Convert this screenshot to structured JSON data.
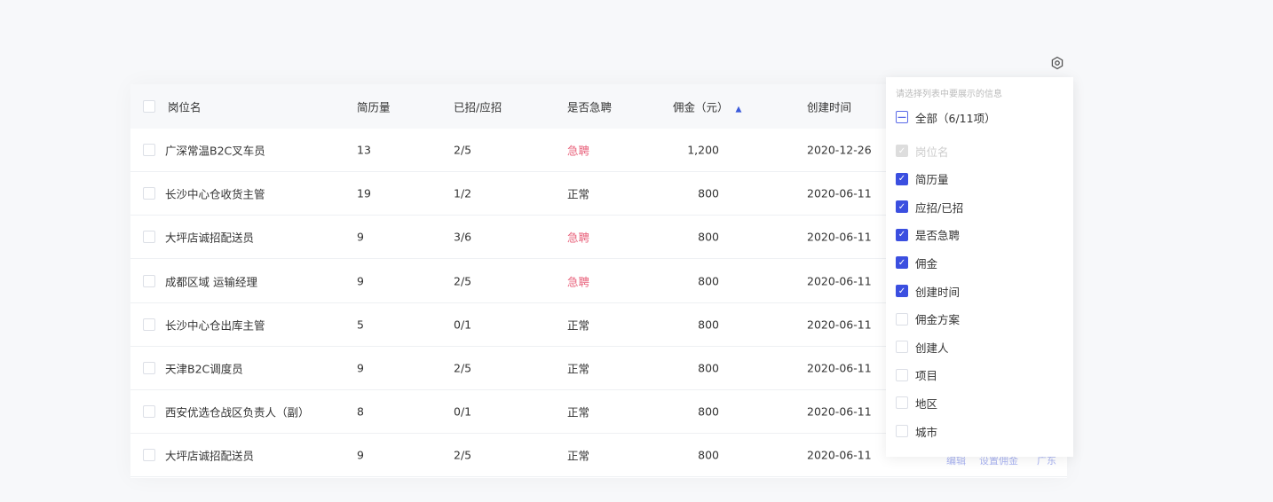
{
  "table": {
    "headers": [
      "岗位名",
      "简历量",
      "已招/应招",
      "是否急聘",
      "佣金（元）",
      "创建时间"
    ],
    "rows": [
      {
        "name": "广深常温B2C叉车员",
        "resumes": "13",
        "hired": "2/5",
        "urgent": "急聘",
        "is_urgent": true,
        "commission": "1,200",
        "created": "2020-12-26"
      },
      {
        "name": "长沙中心仓收货主管",
        "resumes": "19",
        "hired": "1/2",
        "urgent": "正常",
        "is_urgent": false,
        "commission": "800",
        "created": "2020-06-11"
      },
      {
        "name": "大坪店诚招配送员",
        "resumes": "9",
        "hired": "3/6",
        "urgent": "急聘",
        "is_urgent": true,
        "commission": "800",
        "created": "2020-06-11"
      },
      {
        "name": "成都区域 运输经理",
        "resumes": "9",
        "hired": "2/5",
        "urgent": "急聘",
        "is_urgent": true,
        "commission": "800",
        "created": "2020-06-11"
      },
      {
        "name": "长沙中心仓出库主管",
        "resumes": "5",
        "hired": "0/1",
        "urgent": "正常",
        "is_urgent": false,
        "commission": "800",
        "created": "2020-06-11"
      },
      {
        "name": "天津B2C调度员",
        "resumes": "9",
        "hired": "2/5",
        "urgent": "正常",
        "is_urgent": false,
        "commission": "800",
        "created": "2020-06-11"
      },
      {
        "name": "西安优选仓战区负责人（副）",
        "resumes": "8",
        "hired": "0/1",
        "urgent": "正常",
        "is_urgent": false,
        "commission": "800",
        "created": "2020-06-11"
      },
      {
        "name": "大坪店诚招配送员",
        "resumes": "9",
        "hired": "2/5",
        "urgent": "正常",
        "is_urgent": false,
        "commission": "800",
        "created": "2020-06-11"
      }
    ],
    "row_actions": [
      "编辑",
      "设置佣金",
      "广东"
    ]
  },
  "column_picker": {
    "icon": "gear-icon",
    "hint": "请选择列表中要展示的信息",
    "all_label": "全部（6/11项）",
    "options": [
      {
        "label": "岗位名",
        "checked": true,
        "disabled": true
      },
      {
        "label": "简历量",
        "checked": true
      },
      {
        "label": "应招/已招",
        "checked": true
      },
      {
        "label": "是否急聘",
        "checked": true
      },
      {
        "label": "佣金",
        "checked": true
      },
      {
        "label": "创建时间",
        "checked": true
      },
      {
        "label": "佣金方案",
        "checked": false
      },
      {
        "label": "创建人",
        "checked": false
      },
      {
        "label": "项目",
        "checked": false
      },
      {
        "label": "地区",
        "checked": false
      },
      {
        "label": "城市",
        "checked": false
      }
    ]
  },
  "colors": {
    "accent": "#3b4fe0",
    "urgent": "#e8607a"
  }
}
